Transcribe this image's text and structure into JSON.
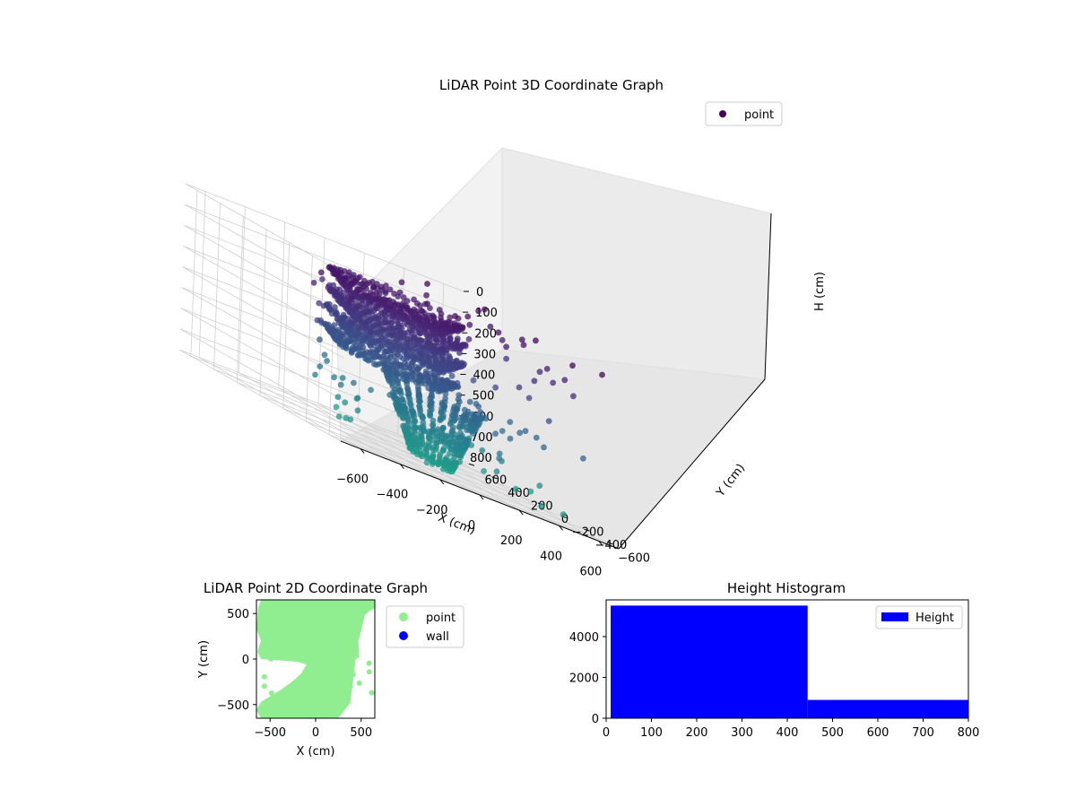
{
  "chart_data": [
    {
      "type": "scatter",
      "projection": "3d",
      "title": "LiDAR Point 3D Coordinate Graph",
      "xlabel": "X (cm)",
      "ylabel": "Y (cm)",
      "zlabel": "H (cm)",
      "xlim": [
        -700,
        700
      ],
      "ylim": [
        -700,
        700
      ],
      "zlim": [
        800,
        0
      ],
      "z_inverted": true,
      "xticks": [
        "−600",
        "−400",
        "−200",
        "0",
        "200",
        "400",
        "600"
      ],
      "yticks": [
        "−600",
        "−400",
        "−200",
        "0",
        "200",
        "400",
        "600"
      ],
      "zticks": [
        "0",
        "100",
        "200",
        "300",
        "400",
        "500",
        "600",
        "700",
        "800"
      ],
      "legend": {
        "entries": [
          "point"
        ],
        "placement": "upper-right"
      },
      "colormap": "viridis",
      "color_by": "height",
      "structure": "rotating LiDAR rings forming a dense spiral column near the centre with scattered outer points",
      "series": [
        {
          "name": "point",
          "point_count": 6417
        }
      ],
      "grid": true
    },
    {
      "type": "scatter",
      "title": "LiDAR Point 2D Coordinate Graph",
      "xlabel": "X (cm)",
      "ylabel": "Y (cm)",
      "xlim": [
        -650,
        650
      ],
      "ylim": [
        -650,
        650
      ],
      "xticks": [
        "−500",
        "0",
        "500"
      ],
      "yticks": [
        "−500",
        "0",
        "500"
      ],
      "series": [
        {
          "name": "point",
          "color": "#90ee90"
        },
        {
          "name": "wall",
          "color": "#0000ff"
        }
      ],
      "legend": {
        "placement": "outside-right"
      },
      "grid": false
    },
    {
      "type": "bar",
      "subtype": "histogram",
      "title": "Height Histogram",
      "xlim": [
        0,
        800
      ],
      "ylim": [
        0,
        5800
      ],
      "xticks": [
        "0",
        "100",
        "200",
        "300",
        "400",
        "500",
        "600",
        "700",
        "800"
      ],
      "yticks": [
        "0",
        "2000",
        "4000"
      ],
      "bins": [
        {
          "from": 10,
          "to": 445,
          "count": 5520
        },
        {
          "from": 445,
          "to": 800,
          "count": 897
        }
      ],
      "series": [
        {
          "name": "Height",
          "color": "#0000ff"
        }
      ],
      "legend": {
        "placement": "upper-right"
      },
      "grid": false
    }
  ]
}
